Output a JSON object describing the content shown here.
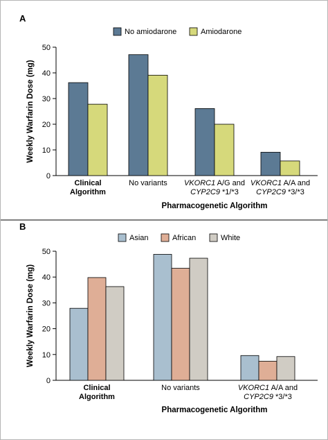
{
  "chart_data": [
    {
      "panel": "A",
      "type": "bar",
      "ylabel": "Weekly Warfarin Dose (mg)",
      "xlabel": "Pharmacogenetic Algorithm",
      "ylim": [
        0,
        50
      ],
      "yticks": [
        0,
        10,
        20,
        30,
        40,
        50
      ],
      "legend_position": "top-center",
      "grid": false,
      "categories": [
        {
          "id": "clinical",
          "lines": [
            "Clinical",
            "Algorithm"
          ],
          "style": "bold"
        },
        {
          "id": "no-variants",
          "lines": [
            "No variants"
          ],
          "style": "normal"
        },
        {
          "id": "vkorc1-ag",
          "lines": [
            "VKORC1 A/G and",
            "CYP2C9 *1/*3"
          ],
          "style": "italic-gene"
        },
        {
          "id": "vkorc1-aa",
          "lines": [
            "VKORC1 A/A and",
            "CYP2C9 *3/*3"
          ],
          "style": "italic-gene"
        }
      ],
      "series": [
        {
          "name": "No amiodarone",
          "color": "#5c7a94",
          "values": [
            36.2,
            47.1,
            26.1,
            9.1
          ]
        },
        {
          "name": "Amiodarone",
          "color": "#d6d97b",
          "values": [
            27.8,
            39.1,
            20.0,
            5.7
          ]
        }
      ]
    },
    {
      "panel": "B",
      "type": "bar",
      "ylabel": "Weekly Warfarin Dose (mg)",
      "xlabel": "Pharmacogenetic Algorithm",
      "ylim": [
        0,
        50
      ],
      "yticks": [
        0,
        10,
        20,
        30,
        40,
        50
      ],
      "legend_position": "top-center",
      "grid": false,
      "categories": [
        {
          "id": "clinical",
          "lines": [
            "Clinical",
            "Algorithm"
          ],
          "style": "bold"
        },
        {
          "id": "no-variants",
          "lines": [
            "No variants"
          ],
          "style": "normal"
        },
        {
          "id": "vkorc1-aa",
          "lines": [
            "VKORC1 A/A and",
            "CYP2C9 *3/*3"
          ],
          "style": "italic-gene"
        }
      ],
      "series": [
        {
          "name": "Asian",
          "color": "#a9bfcf",
          "values": [
            27.9,
            48.8,
            9.6
          ]
        },
        {
          "name": "African",
          "color": "#dfae96",
          "values": [
            39.8,
            43.4,
            7.4
          ]
        },
        {
          "name": "White",
          "color": "#d0ccc4",
          "values": [
            36.3,
            47.3,
            9.2
          ]
        }
      ]
    }
  ]
}
